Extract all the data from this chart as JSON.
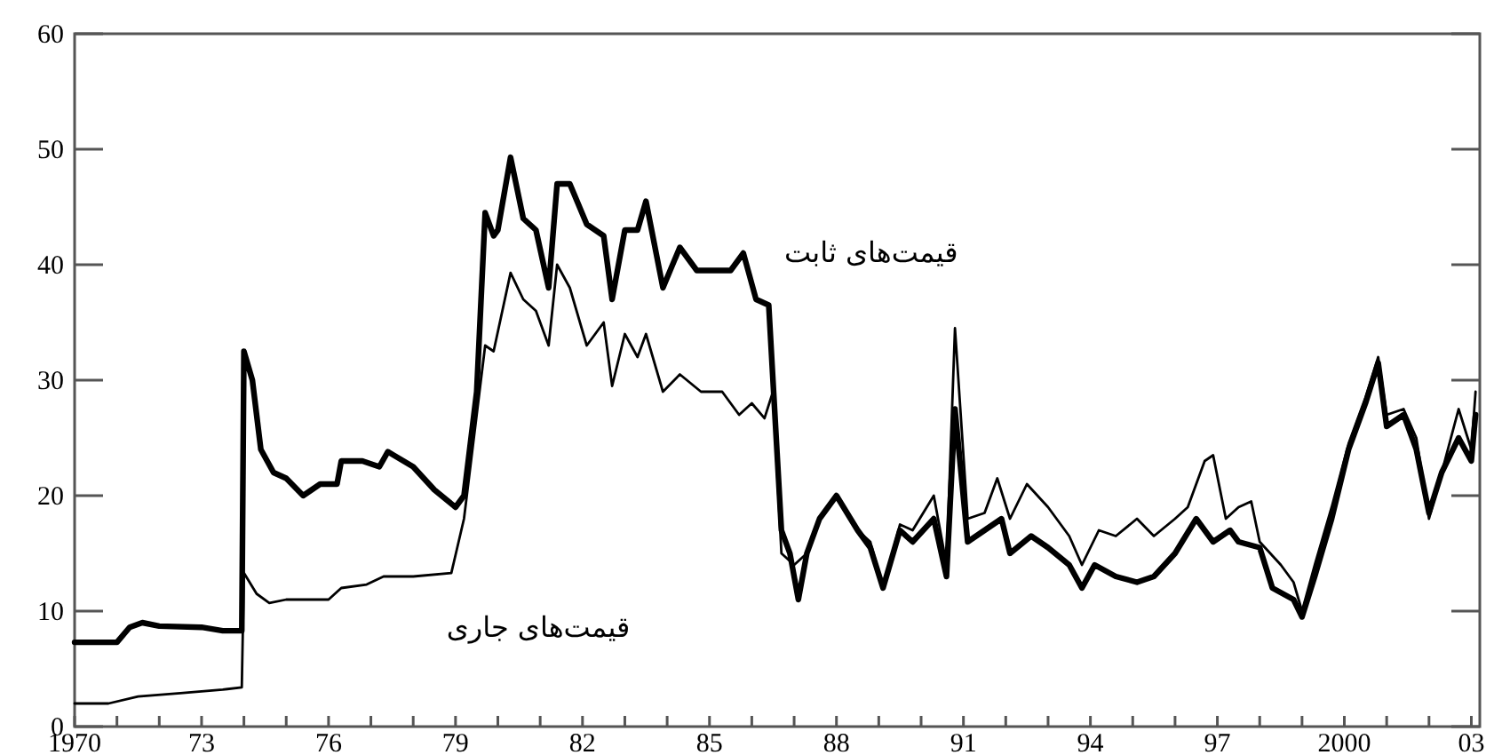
{
  "chart_data": {
    "type": "line",
    "grid": false,
    "xlim": [
      1970,
      2003.2
    ],
    "xticks": [
      {
        "value": 1970,
        "label": "1970"
      },
      {
        "value": 1971,
        "label": null
      },
      {
        "value": 1972,
        "label": null
      },
      {
        "value": 1973,
        "label": "73"
      },
      {
        "value": 1974,
        "label": null
      },
      {
        "value": 1975,
        "label": null
      },
      {
        "value": 1976,
        "label": "76"
      },
      {
        "value": 1977,
        "label": null
      },
      {
        "value": 1978,
        "label": null
      },
      {
        "value": 1979,
        "label": "79"
      },
      {
        "value": 1980,
        "label": null
      },
      {
        "value": 1981,
        "label": null
      },
      {
        "value": 1982,
        "label": "82"
      },
      {
        "value": 1983,
        "label": null
      },
      {
        "value": 1984,
        "label": null
      },
      {
        "value": 1985,
        "label": "85"
      },
      {
        "value": 1986,
        "label": null
      },
      {
        "value": 1987,
        "label": null
      },
      {
        "value": 1988,
        "label": "88"
      },
      {
        "value": 1989,
        "label": null
      },
      {
        "value": 1990,
        "label": null
      },
      {
        "value": 1991,
        "label": "91"
      },
      {
        "value": 1992,
        "label": null
      },
      {
        "value": 1993,
        "label": null
      },
      {
        "value": 1994,
        "label": "94"
      },
      {
        "value": 1995,
        "label": null
      },
      {
        "value": 1996,
        "label": null
      },
      {
        "value": 1997,
        "label": "97"
      },
      {
        "value": 1998,
        "label": null
      },
      {
        "value": 1999,
        "label": null
      },
      {
        "value": 2000,
        "label": "2000"
      },
      {
        "value": 2001,
        "label": null
      },
      {
        "value": 2002,
        "label": null
      },
      {
        "value": 2003,
        "label": "03"
      }
    ],
    "ylim": [
      0,
      60
    ],
    "yticks": [
      0,
      10,
      20,
      30,
      40,
      50,
      60
    ],
    "series": [
      {
        "name": "قیمت‌های ثابت",
        "color": "#000000",
        "line_style": "solid",
        "x": [
          1970,
          1971,
          1971.3,
          1971.6,
          1972,
          1973,
          1973.5,
          1973.95,
          1974,
          1974.2,
          1974.4,
          1974.7,
          1975,
          1975.4,
          1975.8,
          1976.2,
          1976.3,
          1976.8,
          1977.2,
          1977.4,
          1978,
          1978.5,
          1979,
          1979.2,
          1979.5,
          1979.7,
          1979.9,
          1980,
          1980.3,
          1980.6,
          1980.9,
          1981.2,
          1981.4,
          1981.7,
          1982.1,
          1982.5,
          1982.7,
          1983,
          1983.3,
          1983.5,
          1983.9,
          1984.3,
          1984.7,
          1985.5,
          1985.8,
          1986.1,
          1986.4,
          1986.7,
          1986.9,
          1987.1,
          1987.3,
          1987.6,
          1988,
          1988.5,
          1988.8,
          1989.1,
          1989.5,
          1989.8,
          1990.3,
          1990.6,
          1990.8,
          1991.1,
          1991.5,
          1991.9,
          1992.1,
          1992.6,
          1993,
          1993.5,
          1993.8,
          1994.1,
          1994.6,
          1995.1,
          1995.5,
          1996,
          1996.5,
          1996.9,
          1997.3,
          1997.5,
          1998,
          1998.3,
          1998.8,
          1999,
          1999.3,
          1999.7,
          2000.1,
          2000.5,
          2000.8,
          2001,
          2001.4,
          2001.7,
          2002,
          2002.3,
          2002.7,
          2003,
          2003.1
        ],
        "values": [
          7.3,
          7.3,
          8.6,
          9,
          8.7,
          8.6,
          8.3,
          8.3,
          32.5,
          30,
          24,
          22,
          21.5,
          20,
          21,
          21,
          23,
          23,
          22.5,
          23.8,
          22.5,
          20.5,
          19,
          20,
          29,
          44.5,
          42.5,
          43,
          49.3,
          44,
          43,
          38,
          47,
          47,
          43.5,
          42.5,
          37,
          43,
          43,
          45.5,
          38,
          41.5,
          39.5,
          39.5,
          41,
          37,
          36.5,
          17,
          15,
          11,
          15,
          18,
          20,
          17,
          15.5,
          12,
          17,
          16,
          18,
          13,
          27.5,
          16,
          17,
          18,
          15,
          16.5,
          15.5,
          14,
          12,
          14,
          13,
          12.5,
          13,
          15,
          18,
          16,
          17,
          16,
          15.5,
          12,
          11,
          9.5,
          13,
          18,
          24,
          28,
          31.5,
          26,
          27,
          24,
          18.5,
          22,
          25,
          23,
          27
        ]
      },
      {
        "name": "قیمت‌های جاری",
        "color": "#000000",
        "line_style": "solid",
        "x": [
          1970,
          1970.8,
          1971.5,
          1972.5,
          1973.5,
          1973.95,
          1974,
          1974.3,
          1974.6,
          1975,
          1976,
          1976.3,
          1976.9,
          1977.3,
          1978,
          1978.9,
          1979.2,
          1979.5,
          1979.7,
          1979.9,
          1980.3,
          1980.6,
          1980.9,
          1981.2,
          1981.4,
          1981.7,
          1982.1,
          1982.5,
          1982.7,
          1983,
          1983.3,
          1983.5,
          1983.9,
          1984.3,
          1984.8,
          1985.3,
          1985.7,
          1986,
          1986.3,
          1986.5,
          1986.7,
          1987,
          1987.3,
          1987.6,
          1988,
          1988.5,
          1988.8,
          1989.1,
          1989.5,
          1989.8,
          1990.3,
          1990.6,
          1990.8,
          1991.1,
          1991.5,
          1991.8,
          1992.1,
          1992.5,
          1993,
          1993.5,
          1993.8,
          1994.2,
          1994.6,
          1995.1,
          1995.5,
          1996,
          1996.3,
          1996.7,
          1996.9,
          1997.2,
          1997.5,
          1997.8,
          1998,
          1998.5,
          1998.8,
          1999,
          1999.3,
          1999.7,
          2000.1,
          2000.5,
          2000.8,
          2001,
          2001.4,
          2001.7,
          2002,
          2002.3,
          2002.7,
          2003,
          2003.1
        ],
        "values": [
          2,
          2,
          2.6,
          2.9,
          3.2,
          3.4,
          13.3,
          11.5,
          10.7,
          11,
          11,
          12,
          12.3,
          13,
          13,
          13.3,
          18,
          27,
          33,
          32.5,
          39.3,
          37,
          36,
          33,
          40,
          38,
          33,
          35,
          29.5,
          34,
          32,
          34,
          29,
          30.5,
          29,
          29,
          27,
          28,
          26.7,
          29,
          15,
          14,
          15,
          18,
          20,
          17,
          16,
          12,
          17.5,
          17,
          20,
          14,
          34.5,
          18,
          18.5,
          21.5,
          18,
          21,
          19,
          16.5,
          14,
          17,
          16.5,
          18,
          16.5,
          18,
          19,
          23,
          23.5,
          18,
          19,
          19.5,
          16,
          14,
          12.5,
          10,
          14,
          19,
          24.5,
          28.5,
          32,
          27,
          27.5,
          25,
          18,
          22,
          27.5,
          24,
          29
        ]
      }
    ]
  }
}
